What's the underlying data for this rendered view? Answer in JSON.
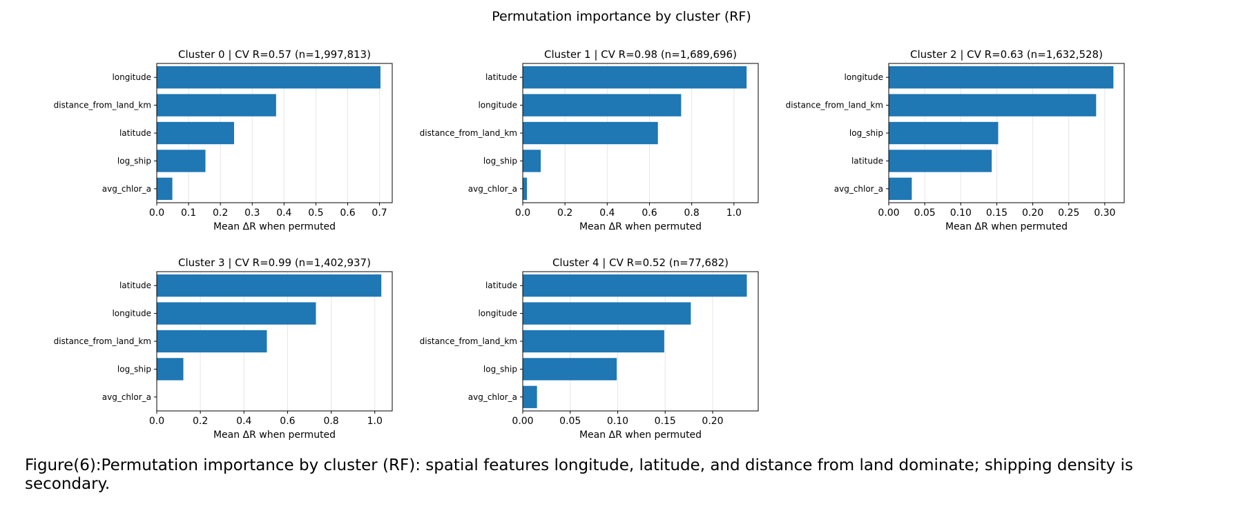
{
  "figure": {
    "suptitle": "Permutation importance by cluster (RF)",
    "caption": "Figure(6):Permutation importance by cluster (RF): spatial features longitude, latitude, and distance from land dominate; shipping density is secondary."
  },
  "colors": {
    "bar": "#1f77b4",
    "grid": "#e6e6e6",
    "axis": "#000000"
  },
  "chart_data": [
    {
      "type": "bar",
      "orientation": "horizontal",
      "title": "Cluster 0 | CV R=0.57 (n=1,997,813)",
      "xlabel": "Mean ΔR when permuted",
      "categories": [
        "longitude",
        "distance_from_land_km",
        "latitude",
        "log_ship",
        "avg_chlor_a"
      ],
      "values": [
        0.703,
        0.375,
        0.243,
        0.153,
        0.049
      ],
      "xlim": [
        0,
        0.74
      ],
      "xticks": [
        0.0,
        0.1,
        0.2,
        0.3,
        0.4,
        0.5,
        0.6,
        0.7
      ],
      "xticklabels": [
        "0.0",
        "0.1",
        "0.2",
        "0.3",
        "0.4",
        "0.5",
        "0.6",
        "0.7"
      ]
    },
    {
      "type": "bar",
      "orientation": "horizontal",
      "title": "Cluster 1 | CV R=0.98 (n=1,689,696)",
      "xlabel": "Mean ΔR when permuted",
      "categories": [
        "latitude",
        "longitude",
        "distance_from_land_km",
        "log_ship",
        "avg_chlor_a"
      ],
      "values": [
        1.06,
        0.75,
        0.64,
        0.085,
        0.02
      ],
      "xlim": [
        0,
        1.115
      ],
      "xticks": [
        0.0,
        0.2,
        0.4,
        0.6,
        0.8,
        1.0
      ],
      "xticklabels": [
        "0.0",
        "0.2",
        "0.4",
        "0.6",
        "0.8",
        "1.0"
      ]
    },
    {
      "type": "bar",
      "orientation": "horizontal",
      "title": "Cluster 2 | CV R=0.63 (n=1,632,528)",
      "xlabel": "Mean ΔR when permuted",
      "categories": [
        "longitude",
        "distance_from_land_km",
        "log_ship",
        "latitude",
        "avg_chlor_a"
      ],
      "values": [
        0.312,
        0.288,
        0.152,
        0.143,
        0.032
      ],
      "xlim": [
        0,
        0.327
      ],
      "xticks": [
        0.0,
        0.05,
        0.1,
        0.15,
        0.2,
        0.25,
        0.3
      ],
      "xticklabels": [
        "0.00",
        "0.05",
        "0.10",
        "0.15",
        "0.20",
        "0.25",
        "0.30"
      ]
    },
    {
      "type": "bar",
      "orientation": "horizontal",
      "title": "Cluster 3 | CV R=0.99 (n=1,402,937)",
      "xlabel": "Mean ΔR when permuted",
      "categories": [
        "latitude",
        "longitude",
        "distance_from_land_km",
        "log_ship",
        "avg_chlor_a"
      ],
      "values": [
        1.03,
        0.73,
        0.505,
        0.122,
        0.0
      ],
      "xlim": [
        0,
        1.08
      ],
      "xticks": [
        0.0,
        0.2,
        0.4,
        0.6,
        0.8,
        1.0
      ],
      "xticklabels": [
        "0.0",
        "0.2",
        "0.4",
        "0.6",
        "0.8",
        "1.0"
      ]
    },
    {
      "type": "bar",
      "orientation": "horizontal",
      "title": "Cluster 4 | CV R=0.52 (n=77,682)",
      "xlabel": "Mean ΔR when permuted",
      "categories": [
        "latitude",
        "longitude",
        "distance_from_land_km",
        "log_ship",
        "avg_chlor_a"
      ],
      "values": [
        0.236,
        0.177,
        0.149,
        0.099,
        0.015
      ],
      "xlim": [
        0,
        0.248
      ],
      "xticks": [
        0.0,
        0.05,
        0.1,
        0.15,
        0.2
      ],
      "xticklabels": [
        "0.00",
        "0.05",
        "0.10",
        "0.15",
        "0.20"
      ]
    }
  ]
}
